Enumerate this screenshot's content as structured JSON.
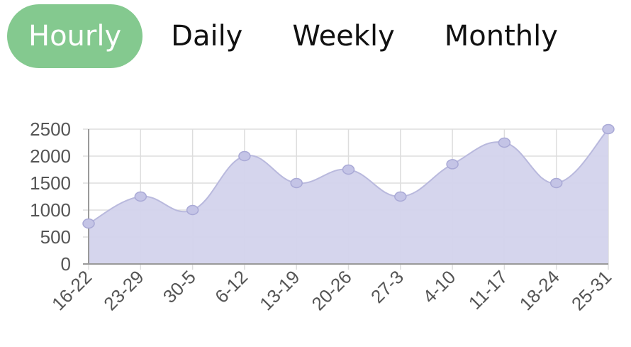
{
  "tabs": [
    {
      "label": "Hourly",
      "active": true
    },
    {
      "label": "Daily",
      "active": false
    },
    {
      "label": "Weekly",
      "active": false
    },
    {
      "label": "Monthly",
      "active": false
    }
  ],
  "colors": {
    "tab_active_bg": "#84c98f",
    "area_fill": "#d3d3ec",
    "line": "#b9b9dd",
    "point": "#c4c4e6"
  },
  "chart_data": {
    "type": "area",
    "categories": [
      "16-22",
      "23-29",
      "30-5",
      "6-12",
      "13-19",
      "20-26",
      "27-3",
      "4-10",
      "11-17",
      "18-24",
      "25-31"
    ],
    "series": [
      {
        "values": [
          750,
          1250,
          1000,
          2000,
          1500,
          1750,
          1250,
          1850,
          2250,
          1500,
          2500
        ]
      }
    ],
    "ylim": [
      0,
      2500
    ],
    "yticks": [
      "0",
      "500",
      "1000",
      "1500",
      "2000",
      "2500"
    ],
    "grid": true,
    "title": "",
    "xlabel": "",
    "ylabel": ""
  }
}
